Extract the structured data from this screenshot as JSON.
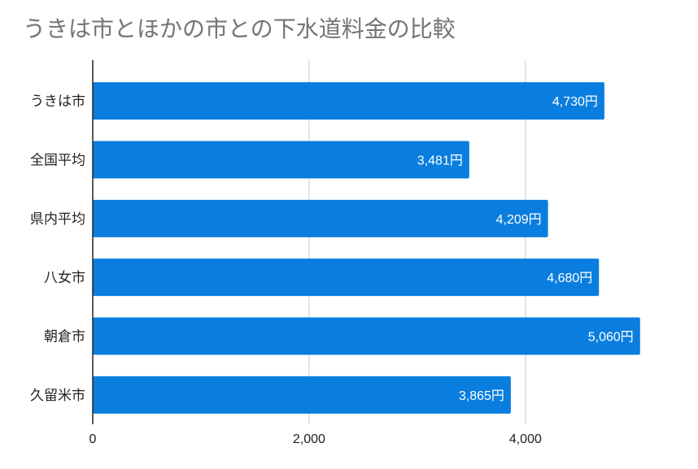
{
  "chart_data": {
    "type": "bar",
    "orientation": "horizontal",
    "title": "うきは市とほかの市との下水道料金の比較",
    "categories": [
      "うきは市",
      "全国平均",
      "県内平均",
      "八女市",
      "朝倉市",
      "久留米市"
    ],
    "values": [
      4730,
      3481,
      4209,
      4680,
      5060,
      3865
    ],
    "data_labels": [
      "4,730円",
      "3,481円",
      "4,209円",
      "4,680円",
      "5,060円",
      "3,865円"
    ],
    "x_ticks": [
      0,
      2000,
      4000
    ],
    "x_tick_labels": [
      "0",
      "2,000",
      "4,000"
    ],
    "xlim": [
      0,
      5400
    ],
    "grid": true,
    "legend": "none",
    "colors": {
      "bar": "#0a7ede",
      "grid": "#cccccc",
      "axis": "#222222",
      "title": "#757575",
      "label_inside": "#ffffff",
      "category_text": "#222222"
    }
  }
}
